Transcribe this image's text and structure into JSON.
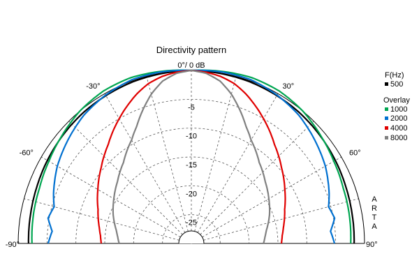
{
  "chart_data": {
    "type": "polar",
    "title": "Directivity pattern",
    "radial_unit_label": "0°/ 0 dB",
    "radial_ticks": [
      "-5",
      "-10",
      "-15",
      "-20",
      "-25"
    ],
    "radial_tick_values": [
      -5,
      -10,
      -15,
      -20,
      -25
    ],
    "radial_range_db": [
      -30,
      0
    ],
    "angle_range_deg": [
      -90,
      90
    ],
    "angle_tick_labels": [
      {
        "angle": -90,
        "label": "-90°"
      },
      {
        "angle": -60,
        "label": "-60°"
      },
      {
        "angle": -30,
        "label": "-30°"
      },
      {
        "angle": 30,
        "label": "30°"
      },
      {
        "angle": 60,
        "label": "60°"
      },
      {
        "angle": 90,
        "label": "90°"
      }
    ],
    "grid_angles_deg": [
      -75,
      -60,
      -45,
      -30,
      -15,
      0,
      15,
      30,
      45,
      60,
      75
    ],
    "grid_circles_db": [
      -5,
      -10,
      -15,
      -20,
      -25
    ],
    "legend": {
      "header": "F(Hz)",
      "overlay_label": "Overlay",
      "items": [
        {
          "name": "500",
          "color": "#000000"
        },
        {
          "name": "1000",
          "color": "#00a651"
        },
        {
          "name": "2000",
          "color": "#0070d0"
        },
        {
          "name": "4000",
          "color": "#e00000"
        },
        {
          "name": "8000",
          "color": "#808080"
        }
      ]
    },
    "side_label": [
      "A",
      "R",
      "T",
      "A"
    ],
    "series": [
      {
        "name": "500",
        "color": "#000000",
        "angles": [
          0,
          10,
          20,
          30,
          40,
          50,
          60,
          70,
          80,
          90
        ],
        "values": [
          0,
          -0.1,
          -0.2,
          -0.4,
          -0.6,
          -0.9,
          -1.2,
          -1.5,
          -1.7,
          -1.8
        ]
      },
      {
        "name": "1000",
        "color": "#00a651",
        "angles": [
          0,
          10,
          20,
          30,
          40,
          50,
          60,
          70,
          80,
          90
        ],
        "values": [
          0,
          0.3,
          0.6,
          0.5,
          0,
          -0.8,
          -1.5,
          -2.0,
          -2.2,
          -2.4
        ]
      },
      {
        "name": "2000",
        "color": "#0070d0",
        "angles": [
          0,
          10,
          20,
          30,
          40,
          50,
          60,
          70,
          75,
          80,
          85,
          90
        ],
        "values": [
          0,
          0.2,
          0.2,
          -0.3,
          -1.0,
          -2.1,
          -3.2,
          -4.6,
          -5.4,
          -4.8,
          -5.8,
          -5.2
        ]
      },
      {
        "name": "4000",
        "color": "#e00000",
        "angles": [
          0,
          5,
          10,
          15,
          20,
          25,
          30,
          40,
          50,
          60,
          70,
          80,
          85,
          90
        ],
        "values": [
          0,
          -0.2,
          -0.6,
          -1.3,
          -2.4,
          -3.7,
          -5.0,
          -7.6,
          -9.6,
          -11.3,
          -12.8,
          -13.8,
          -14.2,
          -14.4
        ]
      },
      {
        "name": "8000",
        "color": "#808080",
        "angles": [
          0,
          5,
          10,
          15,
          20,
          25,
          30,
          40,
          50,
          60,
          70,
          80,
          85,
          90
        ],
        "values": [
          0,
          -0.4,
          -1.4,
          -3.2,
          -5.4,
          -7.6,
          -9.3,
          -11.7,
          -13.3,
          -14.5,
          -15.6,
          -16.8,
          -17.2,
          -17.5
        ]
      }
    ]
  }
}
